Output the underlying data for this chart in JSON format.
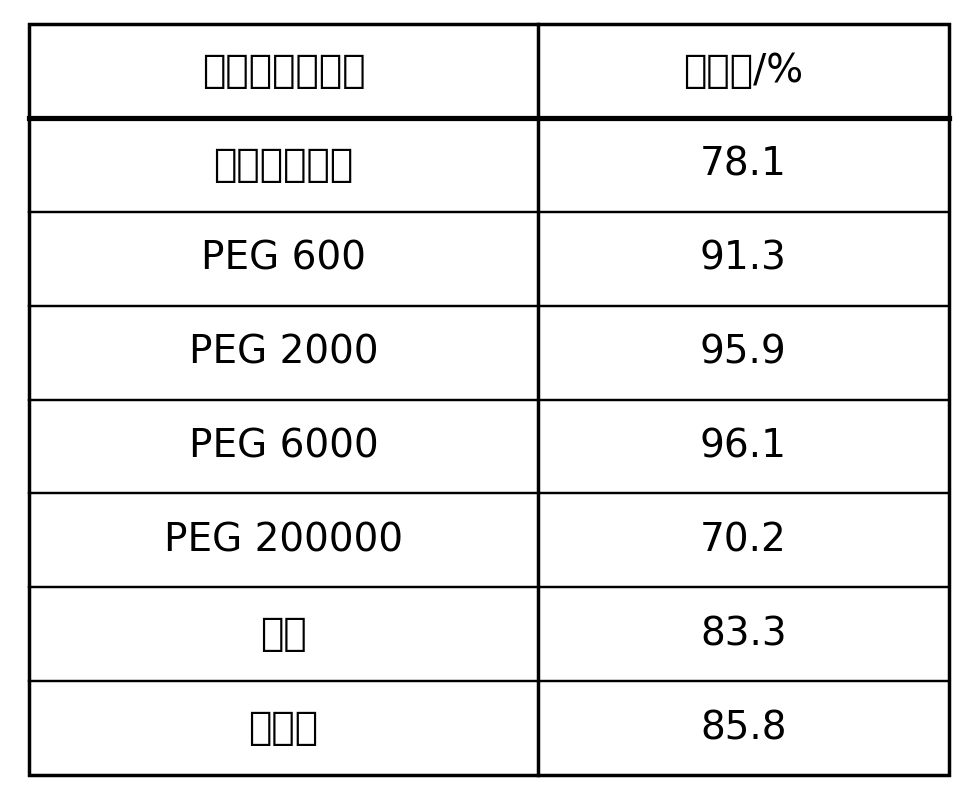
{
  "col1_header": "加入分散剂种类",
  "col2_header": "负载率/%",
  "rows": [
    [
      "不加（空白）",
      "78.1"
    ],
    [
      "PEG 600",
      "91.3"
    ],
    [
      "PEG 2000",
      "95.9"
    ],
    [
      "PEG 6000",
      "96.1"
    ],
    [
      "PEG 200000",
      "70.2"
    ],
    [
      "甘油",
      "83.3"
    ],
    [
      "乙二醇",
      "85.8"
    ]
  ],
  "background_color": "#ffffff",
  "text_color": "#000000",
  "border_color": "#000000",
  "header_fontsize": 28,
  "body_fontsize": 28,
  "fig_width": 9.78,
  "fig_height": 7.99
}
